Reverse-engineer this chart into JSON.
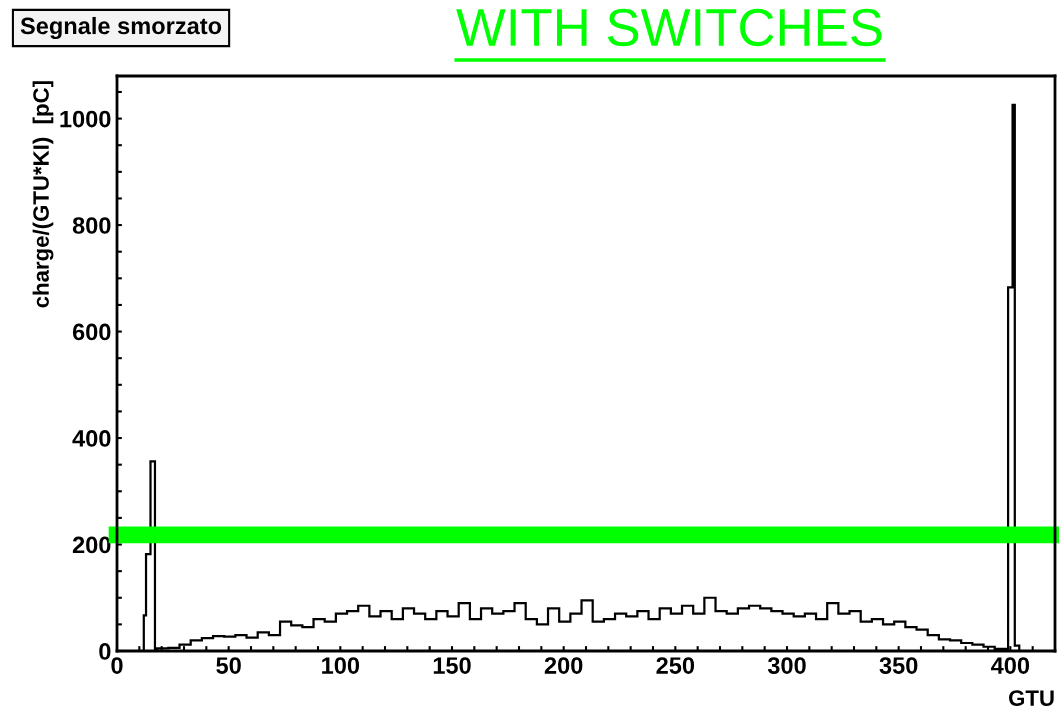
{
  "chart_data": {
    "type": "histogram",
    "title": "Segnale smorzato",
    "xlabel": "GTU",
    "ylabel": "charge/(GTU*KI)  [pC]",
    "annotations": [
      "WITH SWITCHES"
    ],
    "bins": [
      0,
      12,
      13,
      15,
      17,
      18,
      23,
      28,
      33,
      38,
      43,
      48,
      53,
      58,
      63,
      68,
      73,
      78,
      83,
      88,
      93,
      98,
      103,
      108,
      113,
      118,
      123,
      128,
      133,
      138,
      143,
      148,
      153,
      158,
      163,
      168,
      173,
      178,
      183,
      188,
      193,
      198,
      203,
      208,
      213,
      218,
      223,
      228,
      233,
      238,
      243,
      248,
      253,
      258,
      263,
      268,
      273,
      278,
      283,
      288,
      293,
      298,
      303,
      308,
      313,
      318,
      323,
      328,
      333,
      338,
      343,
      348,
      353,
      358,
      363,
      368,
      373,
      378,
      383,
      388,
      393,
      398,
      399,
      401,
      402,
      404,
      420
    ],
    "values": [
      0,
      67,
      182,
      356,
      0,
      5,
      6,
      12,
      20,
      24,
      28,
      27,
      30,
      25,
      35,
      30,
      55,
      48,
      45,
      60,
      55,
      70,
      75,
      85,
      65,
      75,
      60,
      80,
      70,
      60,
      75,
      65,
      90,
      60,
      80,
      70,
      75,
      90,
      60,
      50,
      80,
      55,
      70,
      95,
      55,
      60,
      70,
      65,
      75,
      60,
      80,
      70,
      85,
      70,
      100,
      75,
      70,
      80,
      85,
      80,
      75,
      70,
      65,
      70,
      60,
      90,
      70,
      75,
      55,
      60,
      50,
      55,
      45,
      40,
      30,
      22,
      20,
      15,
      12,
      8,
      4,
      3,
      683,
      1026,
      10,
      0
    ],
    "color": "#000000",
    "xlim": [
      0,
      420
    ],
    "ylim": [
      0,
      1080
    ],
    "xticks": [
      0,
      {
        "value": 10,
        "label": null
      },
      {
        "value": 20,
        "label": null
      },
      {
        "value": 30,
        "label": null
      },
      {
        "value": 40,
        "label": null
      },
      50,
      {
        "value": 60,
        "label": null
      },
      {
        "value": 70,
        "label": null
      },
      {
        "value": 80,
        "label": null
      },
      {
        "value": 90,
        "label": null
      },
      100,
      {
        "value": 110,
        "label": null
      },
      {
        "value": 120,
        "label": null
      },
      {
        "value": 130,
        "label": null
      },
      {
        "value": 140,
        "label": null
      },
      150,
      {
        "value": 160,
        "label": null
      },
      {
        "value": 170,
        "label": null
      },
      {
        "value": 180,
        "label": null
      },
      {
        "value": 190,
        "label": null
      },
      200,
      {
        "value": 210,
        "label": null
      },
      {
        "value": 220,
        "label": null
      },
      {
        "value": 230,
        "label": null
      },
      {
        "value": 240,
        "label": null
      },
      250,
      {
        "value": 260,
        "label": null
      },
      {
        "value": 270,
        "label": null
      },
      {
        "value": 280,
        "label": null
      },
      {
        "value": 290,
        "label": null
      },
      300,
      {
        "value": 310,
        "label": null
      },
      {
        "value": 320,
        "label": null
      },
      {
        "value": 330,
        "label": null
      },
      {
        "value": 340,
        "label": null
      },
      350,
      {
        "value": 360,
        "label": null
      },
      {
        "value": 370,
        "label": null
      },
      {
        "value": 380,
        "label": null
      },
      {
        "value": 390,
        "label": null
      },
      400,
      {
        "value": 410,
        "label": null
      }
    ],
    "yticks": [
      0,
      {
        "value": 50,
        "label": null
      },
      {
        "value": 100,
        "label": null
      },
      {
        "value": 150,
        "label": null
      },
      200,
      {
        "value": 250,
        "label": null
      },
      {
        "value": 300,
        "label": null
      },
      {
        "value": 350,
        "label": null
      },
      400,
      {
        "value": 450,
        "label": null
      },
      {
        "value": 500,
        "label": null
      },
      {
        "value": 550,
        "label": null
      },
      600,
      {
        "value": 650,
        "label": null
      },
      {
        "value": 700,
        "label": null
      },
      {
        "value": 750,
        "label": null
      },
      800,
      {
        "value": 850,
        "label": null
      },
      {
        "value": 900,
        "label": null
      },
      {
        "value": 950,
        "label": null
      },
      1000,
      {
        "value": 1050,
        "label": null
      }
    ],
    "ref_lines": [
      {
        "axis": "y",
        "value": 218,
        "color": "#00ff00"
      }
    ],
    "grid": false
  }
}
